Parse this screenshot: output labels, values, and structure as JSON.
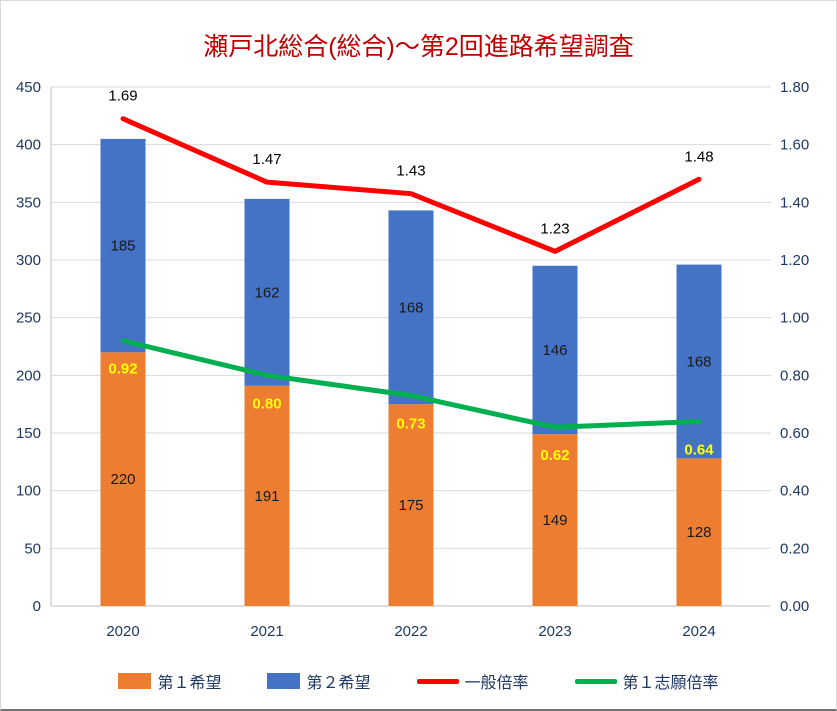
{
  "title": "瀬戸北総合(総合)～第2回進路希望調査",
  "colors": {
    "title": "#C00000",
    "axis_text": "#1F3864",
    "gridline": "#D9D9D9",
    "axis_line": "#BFBFBF",
    "bar_first": "#ED7D31",
    "bar_second": "#4472C4",
    "line_general": "#FF0000",
    "line_first_choice": "#00B050",
    "label_yellow": "#FFFF00",
    "label_dark": "#1A1A1A"
  },
  "chart_data": {
    "type": "bar",
    "subtype": "stacked-bar-with-lines",
    "title": "瀬戸北総合(総合)～第2回進路希望調査",
    "categories": [
      "2020",
      "2021",
      "2022",
      "2023",
      "2024"
    ],
    "series": [
      {
        "name": "第１希望",
        "type": "bar",
        "axis": "left",
        "color": "#ED7D31",
        "values": [
          220,
          191,
          175,
          149,
          128
        ]
      },
      {
        "name": "第２希望",
        "type": "bar",
        "axis": "left",
        "color": "#4472C4",
        "values": [
          185,
          162,
          168,
          146,
          168
        ]
      },
      {
        "name": "一般倍率",
        "type": "line",
        "axis": "right",
        "color": "#FF0000",
        "values": [
          1.69,
          1.47,
          1.43,
          1.23,
          1.48
        ]
      },
      {
        "name": "第１志願倍率",
        "type": "line",
        "axis": "right",
        "color": "#00B050",
        "values": [
          0.92,
          0.8,
          0.73,
          0.62,
          0.64
        ]
      }
    ],
    "left_axis": {
      "min": 0,
      "max": 450,
      "step": 50,
      "ticks": [
        "0",
        "50",
        "100",
        "150",
        "200",
        "250",
        "300",
        "350",
        "400",
        "450"
      ]
    },
    "right_axis": {
      "min": 0,
      "max": 1.8,
      "step": 0.2,
      "ticks": [
        "0.00",
        "0.20",
        "0.40",
        "0.60",
        "0.80",
        "1.00",
        "1.20",
        "1.40",
        "1.60",
        "1.80"
      ]
    },
    "grid": true,
    "legend_position": "bottom"
  },
  "legend": {
    "items": [
      {
        "label": "第１希望",
        "type": "bar",
        "color": "#ED7D31"
      },
      {
        "label": "第２希望",
        "type": "bar",
        "color": "#4472C4"
      },
      {
        "label": "一般倍率",
        "type": "line",
        "color": "#FF0000"
      },
      {
        "label": "第１志願倍率",
        "type": "line",
        "color": "#00B050"
      }
    ]
  }
}
